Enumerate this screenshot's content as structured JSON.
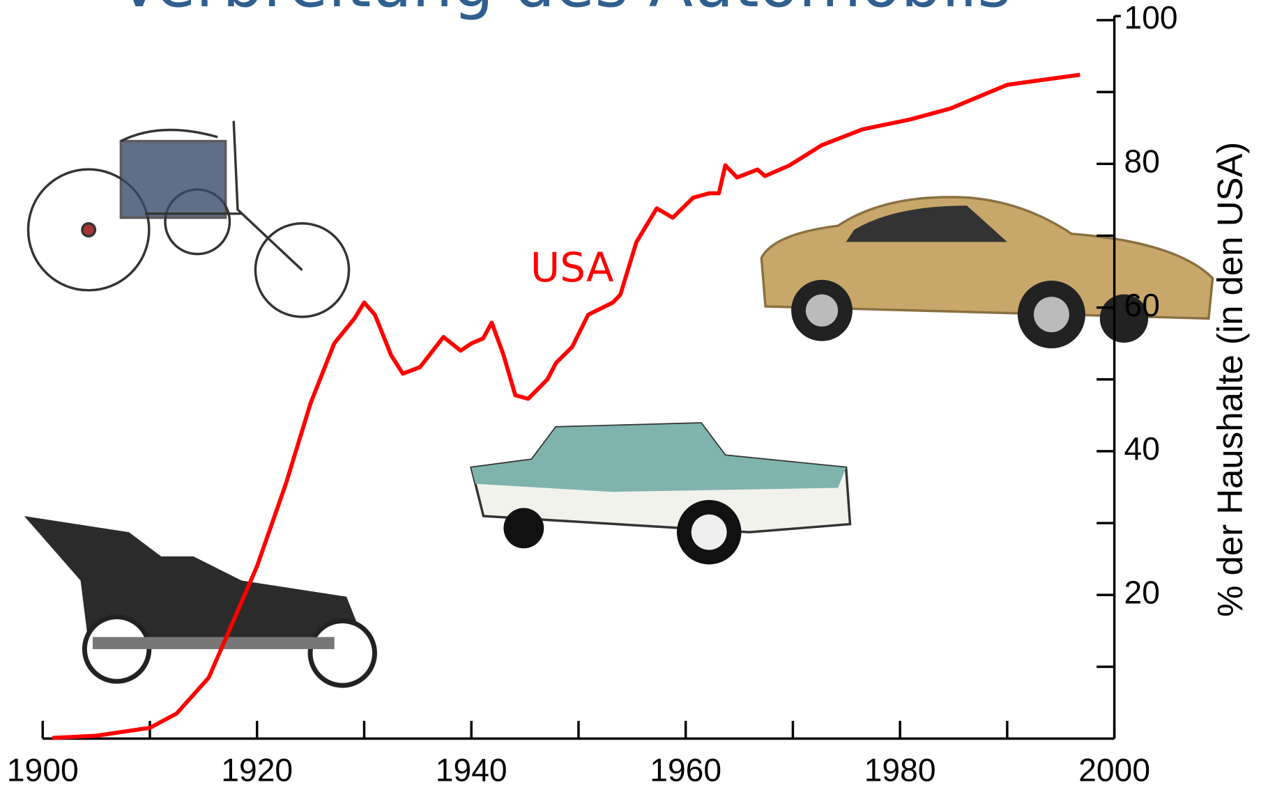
{
  "chart_data": {
    "type": "line",
    "title": "Verbreitung des Automobils",
    "y_label": "% der Haushalte (in den USA)",
    "x": [
      1900.9,
      1905,
      1910,
      1912.5,
      1915.5,
      1917.8,
      1920,
      1922.7,
      1925,
      1927.2,
      1929.1,
      1930,
      1931,
      1932.5,
      1933.6,
      1935.2,
      1937.4,
      1939,
      1940,
      1941.1,
      1941.9,
      1943,
      1944.1,
      1945.3,
      1947.1,
      1947.9,
      1949.4,
      1950.9,
      1953.2,
      1953.9,
      1955.4,
      1957.3,
      1958.8,
      1960.7,
      1962.2,
      1963.1,
      1963.7,
      1964.8,
      1966.7,
      1967.4,
      1969.7,
      1972.7,
      1976.5,
      1981,
      1984.7,
      1990,
      1996.8
    ],
    "series": [
      {
        "name": "USA",
        "color": "#ff0000",
        "values": [
          0.1,
          0.4,
          1.5,
          3.5,
          8.5,
          16.4,
          24,
          35.5,
          46.7,
          55,
          58.5,
          60.7,
          59,
          53.4,
          50.8,
          51.7,
          55.9,
          54,
          55,
          55.7,
          57.9,
          53.4,
          47.8,
          47.3,
          50,
          52.3,
          54.5,
          59,
          60.7,
          61.8,
          69.1,
          73.8,
          72.5,
          75.3,
          75.9,
          75.9,
          79.8,
          78.1,
          79.2,
          78.3,
          79.8,
          82.6,
          84.8,
          86.2,
          87.7,
          91,
          92.4
        ]
      }
    ],
    "xlim": [
      1900,
      2000
    ],
    "xticks": [
      1900,
      1920,
      1940,
      1960,
      1980,
      2000
    ],
    "xminorticks": [
      1910,
      1930,
      1950,
      1970,
      1990
    ],
    "ylim": [
      0,
      100
    ],
    "yticks": [
      20,
      40,
      60,
      80,
      100
    ],
    "yminorticks": [
      10,
      30,
      50,
      70,
      90
    ],
    "y_axis_side": "right",
    "grid": false
  }
}
